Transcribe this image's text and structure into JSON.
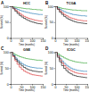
{
  "chart_data": [
    {
      "type": "line",
      "title": "HCC",
      "annotations": [
        "A"
      ],
      "xlabel": "Time (months)",
      "ylabel": "Survival (%)",
      "x": [
        0,
        10,
        20,
        30,
        40,
        50,
        60,
        70,
        80,
        90,
        100,
        110,
        120,
        130,
        140,
        150
      ],
      "xlim": [
        0,
        150
      ],
      "xticks": [
        0,
        50,
        100,
        150
      ],
      "ylim": [
        0,
        100
      ],
      "yticks": [
        0,
        50,
        100
      ],
      "grid": false,
      "series": [
        {
          "color": "#2ca02c",
          "values": [
            100,
            98,
            97,
            96,
            95,
            94,
            93,
            92,
            92,
            91,
            90,
            90,
            89,
            89,
            88,
            88
          ]
        },
        {
          "color": "#1f77b4",
          "values": [
            100,
            96,
            93,
            90,
            87,
            85,
            83,
            81,
            80,
            78,
            77,
            76,
            75,
            74,
            74,
            73
          ]
        },
        {
          "color": "#d62728",
          "values": [
            100,
            94,
            88,
            82,
            77,
            72,
            68,
            65,
            62,
            60,
            58,
            56,
            55,
            54,
            53,
            52
          ]
        },
        {
          "color": "#000000",
          "values": [
            100,
            92,
            84,
            77,
            71,
            66,
            62,
            58,
            55,
            52,
            50,
            48,
            46,
            45,
            44,
            44
          ]
        }
      ]
    },
    {
      "type": "line",
      "title": "TCGA",
      "annotations": [
        "B"
      ],
      "xlabel": "Time (months)",
      "ylabel": "Survival (%)",
      "x": [
        0,
        10,
        20,
        30,
        40,
        50,
        60,
        70,
        80,
        90,
        100,
        110,
        120,
        130,
        140,
        150
      ],
      "xlim": [
        0,
        150
      ],
      "xticks": [
        0,
        50,
        100,
        150
      ],
      "ylim": [
        0,
        100
      ],
      "yticks": [
        0,
        50,
        100
      ],
      "grid": false,
      "series": [
        {
          "color": "#2ca02c",
          "values": [
            100,
            97,
            95,
            93,
            92,
            91,
            90,
            89,
            88,
            88,
            87,
            87,
            86,
            86,
            86,
            85
          ]
        },
        {
          "color": "#1f77b4",
          "values": [
            100,
            95,
            90,
            86,
            83,
            80,
            78,
            76,
            74,
            73,
            72,
            71,
            70,
            70,
            69,
            69
          ]
        },
        {
          "color": "#d62728",
          "values": [
            100,
            92,
            85,
            79,
            74,
            70,
            66,
            63,
            61,
            59,
            57,
            56,
            55,
            54,
            54,
            53
          ]
        },
        {
          "color": "#000000",
          "values": [
            100,
            90,
            81,
            74,
            68,
            63,
            59,
            56,
            53,
            51,
            49,
            48,
            47,
            46,
            45,
            45
          ]
        }
      ]
    },
    {
      "type": "line",
      "title": "GSE",
      "annotations": [
        "C"
      ],
      "xlabel": "Time (months)",
      "ylabel": "Survival (%)",
      "x": [
        0,
        10,
        20,
        30,
        40,
        50,
        60,
        70,
        80,
        90,
        100,
        110,
        120,
        130,
        140,
        150
      ],
      "xlim": [
        0,
        150
      ],
      "xticks": [
        0,
        50,
        100,
        150
      ],
      "ylim": [
        0,
        100
      ],
      "yticks": [
        0,
        50,
        100
      ],
      "grid": false,
      "series": [
        {
          "color": "#2ca02c",
          "values": [
            100,
            96,
            92,
            89,
            86,
            84,
            82,
            80,
            79,
            78,
            77,
            76,
            75,
            75,
            74,
            74
          ]
        },
        {
          "color": "#1f77b4",
          "values": [
            100,
            91,
            82,
            75,
            69,
            64,
            60,
            57,
            55,
            53,
            52,
            51,
            50,
            50,
            49,
            49
          ]
        },
        {
          "color": "#d62728",
          "values": [
            100,
            86,
            73,
            62,
            53,
            46,
            41,
            37,
            34,
            31,
            29,
            28,
            27,
            26,
            25,
            25
          ]
        },
        {
          "color": "#000000",
          "values": [
            100,
            89,
            78,
            70,
            63,
            57,
            52,
            48,
            45,
            43,
            41,
            40,
            39,
            38,
            38,
            37
          ]
        }
      ]
    },
    {
      "type": "line",
      "title": "ICGC",
      "annotations": [
        "D"
      ],
      "xlabel": "Time (months)",
      "ylabel": "Survival (%)",
      "x": [
        0,
        10,
        20,
        30,
        40,
        50,
        60,
        70,
        80,
        90,
        100,
        110,
        120,
        130,
        140,
        150
      ],
      "xlim": [
        0,
        150
      ],
      "xticks": [
        0,
        50,
        100,
        150
      ],
      "ylim": [
        0,
        100
      ],
      "yticks": [
        0,
        50,
        100
      ],
      "grid": false,
      "series": [
        {
          "color": "#2ca02c",
          "values": [
            100,
            95,
            90,
            86,
            82,
            79,
            76,
            74,
            72,
            70,
            69,
            68,
            67,
            66,
            66,
            65
          ]
        },
        {
          "color": "#1f77b4",
          "values": [
            100,
            90,
            80,
            72,
            65,
            59,
            54,
            50,
            47,
            45,
            43,
            42,
            41,
            40,
            40,
            39
          ]
        },
        {
          "color": "#d62728",
          "values": [
            100,
            88,
            76,
            66,
            58,
            51,
            46,
            42,
            39,
            36,
            34,
            33,
            32,
            31,
            31,
            30
          ]
        },
        {
          "color": "#000000",
          "values": [
            100,
            84,
            70,
            58,
            49,
            42,
            36,
            32,
            28,
            26,
            24,
            23,
            22,
            21,
            20,
            20
          ]
        }
      ]
    }
  ]
}
